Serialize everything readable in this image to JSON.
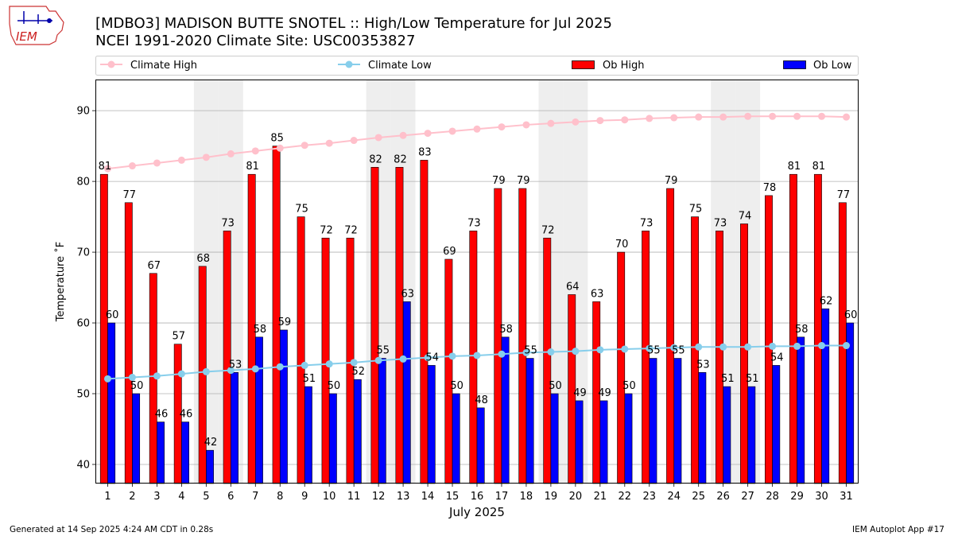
{
  "title_line1": "[MDBO3] MADISON BUTTE SNOTEL :: High/Low Temperature for Jul 2025",
  "title_line2": "NCEI 1991-2020 Climate Site: USC00353827",
  "logo_text": "IEM",
  "footer_left": "Generated at 14 Sep 2025 4:24 AM CDT in 0.28s",
  "footer_right": "IEM Autoplot App #17",
  "colors": {
    "ob_high": "#ff0000",
    "ob_low": "#0000ff",
    "climate_high": "#ffc0cb",
    "climate_low": "#87ceeb",
    "weekend_shade": "#eeeeee",
    "grid": "#b0b0b0"
  },
  "chart_data": {
    "type": "bar",
    "xlabel": "July 2025",
    "ylabel": "Temperature ˚F",
    "ylim": [
      37.3,
      94.4
    ],
    "yticks": [
      40,
      50,
      60,
      70,
      80,
      90
    ],
    "grid": "horizontal",
    "legend_placement": "top",
    "legend": [
      "Climate High",
      "Climate Low",
      "Ob High",
      "Ob Low"
    ],
    "weekend_days": [
      5,
      6,
      12,
      13,
      19,
      20,
      26,
      27
    ],
    "categories": [
      "1",
      "2",
      "3",
      "4",
      "5",
      "6",
      "7",
      "8",
      "9",
      "10",
      "11",
      "12",
      "13",
      "14",
      "15",
      "16",
      "17",
      "18",
      "19",
      "20",
      "21",
      "22",
      "23",
      "24",
      "25",
      "26",
      "27",
      "28",
      "29",
      "30",
      "31"
    ],
    "series": [
      {
        "name": "Ob High",
        "kind": "bar",
        "values": [
          81,
          77,
          67,
          57,
          68,
          73,
          81,
          85,
          75,
          72,
          72,
          82,
          82,
          83,
          69,
          73,
          79,
          79,
          72,
          64,
          63,
          70,
          73,
          79,
          75,
          73,
          74,
          78,
          81,
          81,
          77
        ]
      },
      {
        "name": "Ob Low",
        "kind": "bar",
        "values": [
          60,
          50,
          46,
          46,
          42,
          53,
          58,
          59,
          51,
          50,
          52,
          55,
          63,
          54,
          50,
          48,
          58,
          55,
          50,
          49,
          49,
          50,
          55,
          55,
          53,
          51,
          51,
          54,
          58,
          62,
          60
        ]
      },
      {
        "name": "Climate High",
        "kind": "line",
        "values": [
          81.8,
          82.2,
          82.6,
          83.0,
          83.4,
          83.9,
          84.3,
          84.7,
          85.1,
          85.4,
          85.8,
          86.2,
          86.5,
          86.8,
          87.1,
          87.4,
          87.7,
          88.0,
          88.2,
          88.4,
          88.6,
          88.7,
          88.9,
          89.0,
          89.1,
          89.1,
          89.2,
          89.2,
          89.2,
          89.2,
          89.1
        ]
      },
      {
        "name": "Climate Low",
        "kind": "line",
        "values": [
          52.1,
          52.3,
          52.5,
          52.8,
          53.1,
          53.3,
          53.5,
          53.8,
          54.0,
          54.2,
          54.4,
          54.7,
          54.9,
          55.1,
          55.3,
          55.4,
          55.6,
          55.8,
          55.9,
          56.0,
          56.2,
          56.3,
          56.4,
          56.5,
          56.6,
          56.6,
          56.6,
          56.7,
          56.7,
          56.8,
          56.8
        ]
      }
    ]
  }
}
